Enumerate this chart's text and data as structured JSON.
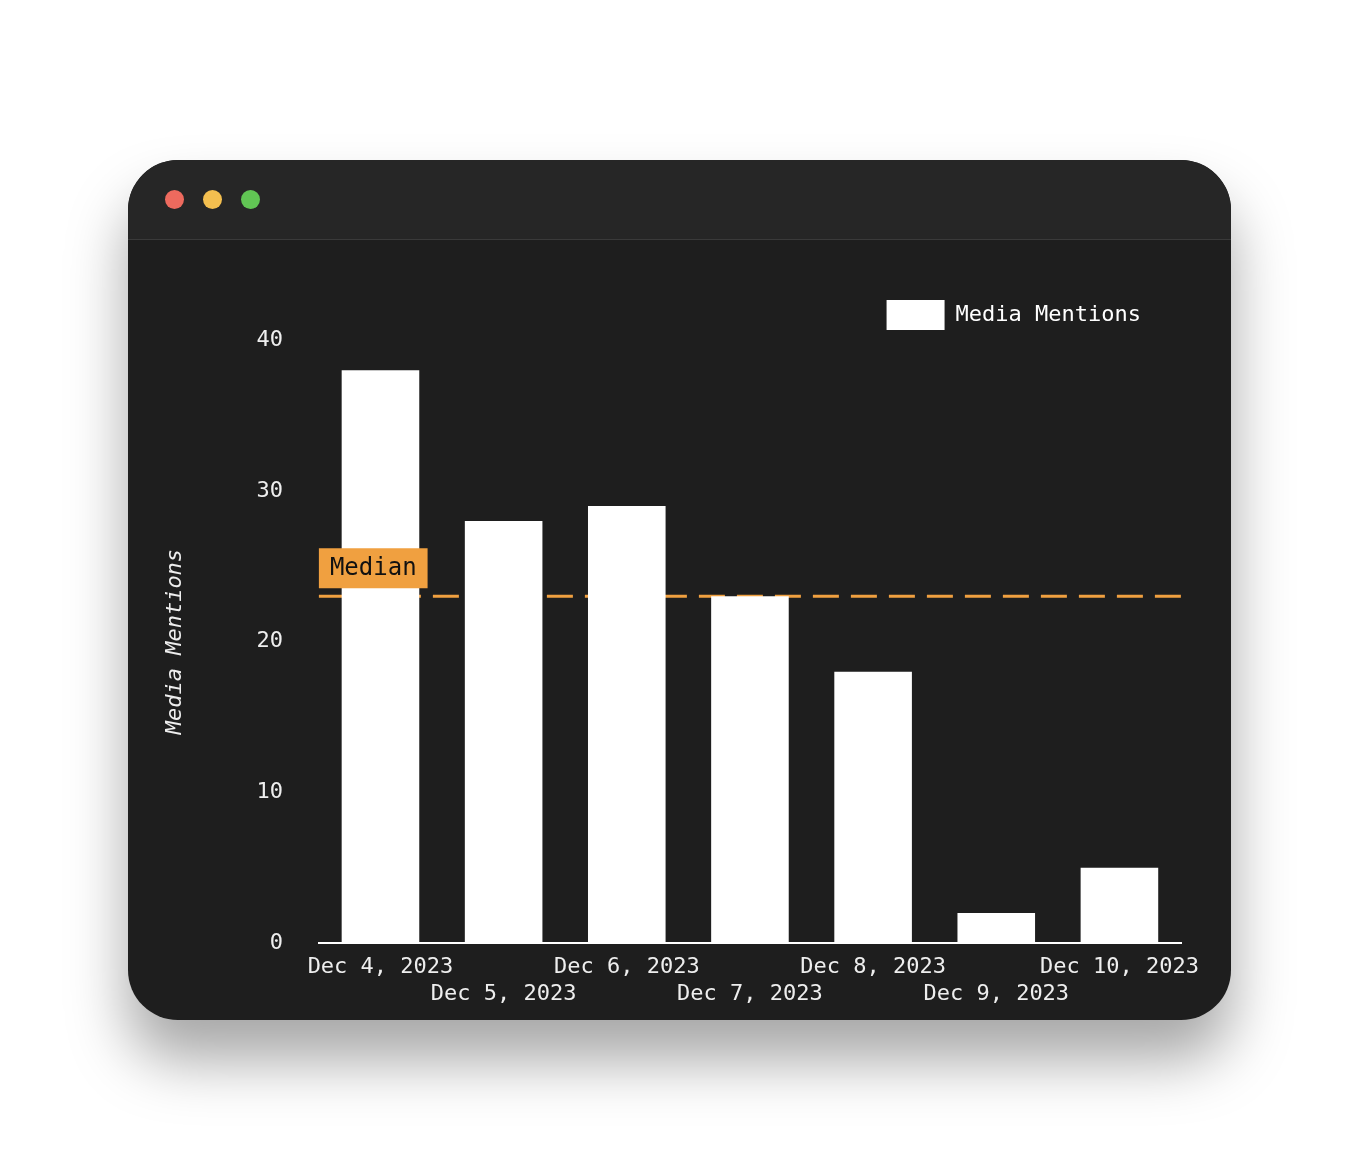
{
  "chart_data": {
    "type": "bar",
    "categories": [
      "Dec 4, 2023",
      "Dec 5, 2023",
      "Dec 6, 2023",
      "Dec 7, 2023",
      "Dec 8, 2023",
      "Dec 9, 2023",
      "Dec 10, 2023"
    ],
    "series": [
      {
        "name": "Media Mentions",
        "color": "#ffffff",
        "values": [
          38,
          28,
          29,
          23,
          18,
          2,
          5
        ]
      }
    ],
    "ylabel": "Media Mentions",
    "ylim": [
      0,
      40
    ],
    "yticks": [
      0,
      10,
      20,
      30,
      40
    ],
    "grid": false,
    "legend": "top right",
    "ref_lines": [
      {
        "axis": "y",
        "value": 23,
        "label": "Median",
        "color": "#f0a040",
        "line_style": "dashed"
      }
    ]
  }
}
